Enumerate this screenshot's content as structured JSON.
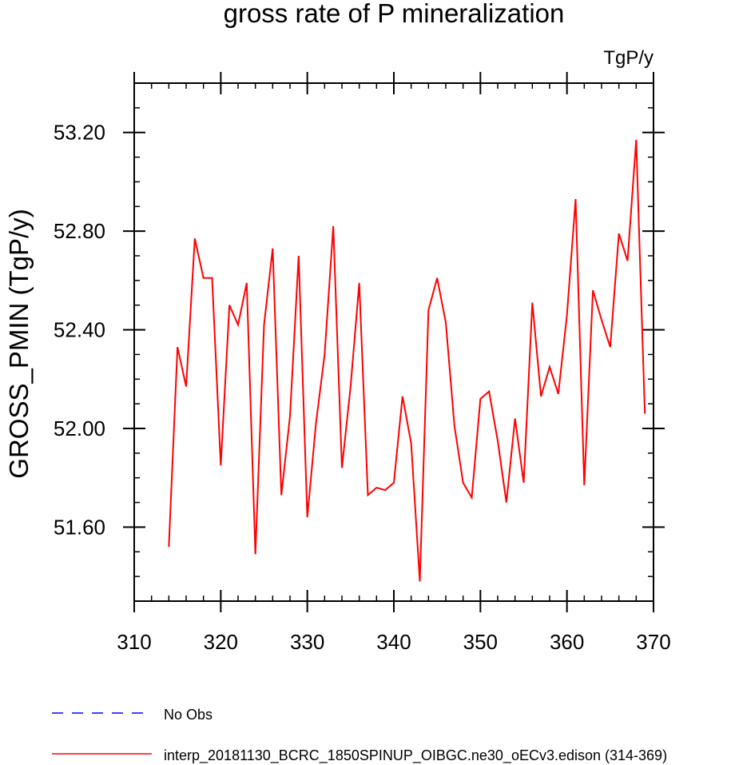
{
  "chart_data": {
    "type": "line",
    "title": "gross rate of P mineralization",
    "units_label": "TgP/y",
    "ylabel": "GROSS_PMIN  (TgP/y)",
    "xlabel": "",
    "xlim": [
      310,
      370
    ],
    "ylim": [
      51.3,
      53.4
    ],
    "x_ticks": [
      310,
      320,
      330,
      340,
      350,
      360,
      370
    ],
    "x_tick_labels": [
      "310",
      "320",
      "330",
      "340",
      "350",
      "360",
      "370"
    ],
    "y_ticks": [
      51.6,
      52.0,
      52.4,
      52.8,
      53.2
    ],
    "y_tick_labels": [
      "51.60",
      "52.00",
      "52.40",
      "52.80",
      "53.20"
    ],
    "x_minor_step": 2,
    "y_minor_step": 0.1,
    "grid": false,
    "legend_position": "bottom-left",
    "legend": [
      {
        "label": "No Obs",
        "color": "#0000ff",
        "dash": "dashed"
      },
      {
        "label": "interp_20181130_BCRC_1850SPINUP_OIBGC.ne30_oECv3.edison (314-369)",
        "color": "#ff0000",
        "dash": "solid"
      }
    ],
    "series": [
      {
        "name": "interp_20181130_BCRC_1850SPINUP_OIBGC.ne30_oECv3.edison (314-369)",
        "color": "#ff0000",
        "x": [
          314,
          315,
          316,
          317,
          318,
          319,
          320,
          321,
          322,
          323,
          324,
          325,
          326,
          327,
          328,
          329,
          330,
          331,
          332,
          333,
          334,
          335,
          336,
          337,
          338,
          339,
          340,
          341,
          342,
          343,
          344,
          345,
          346,
          347,
          348,
          349,
          350,
          351,
          352,
          353,
          354,
          355,
          356,
          357,
          358,
          359,
          360,
          361,
          362,
          363,
          364,
          365,
          366,
          367,
          368,
          369
        ],
        "values": [
          51.52,
          52.33,
          52.17,
          52.77,
          52.61,
          52.61,
          51.85,
          52.5,
          52.42,
          52.59,
          51.49,
          52.42,
          52.73,
          51.73,
          52.05,
          52.7,
          51.64,
          52.02,
          52.3,
          52.82,
          51.84,
          52.17,
          52.59,
          51.73,
          51.76,
          51.75,
          51.78,
          52.13,
          51.94,
          51.38,
          52.48,
          52.61,
          52.43,
          52.01,
          51.78,
          51.72,
          52.12,
          52.15,
          51.95,
          51.7,
          52.04,
          51.78,
          52.51,
          52.13,
          52.25,
          52.14,
          52.46,
          52.93,
          51.77,
          52.56,
          52.44,
          52.33,
          52.79,
          52.68,
          53.17,
          52.06
        ]
      }
    ]
  }
}
